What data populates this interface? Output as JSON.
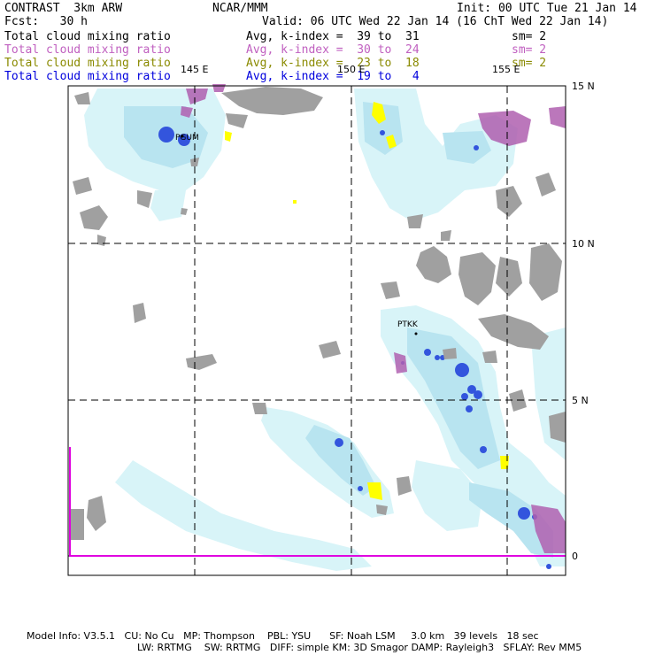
{
  "header": {
    "model": "CONTRAST  3km ARW",
    "org": "NCAR/MMM",
    "init": "Init: 00 UTC Tue 21 Jan 14",
    "fcst": "Fcst:   30 h",
    "valid": "Valid: 06 UTC Wed 22 Jan 14 (16 ChT Wed 22 Jan 14)"
  },
  "fields": [
    {
      "name": "Total cloud mixing ratio",
      "kindex": "Avg, k-index =  39 to  31",
      "sm": "sm= 2",
      "color": "#000000"
    },
    {
      "name": "Total cloud mixing ratio",
      "kindex": "Avg, k-index =  30 to  24",
      "sm": "sm= 2",
      "color": "#c060c0"
    },
    {
      "name": "Total cloud mixing ratio",
      "kindex": "Avg, k-index =  23 to  18",
      "sm": "sm= 2",
      "color": "#8a8a00"
    },
    {
      "name": "Total cloud mixing ratio",
      "kindex": "Avg, k-index =  19 to   4",
      "sm": "",
      "color": "#0000dd"
    }
  ],
  "map": {
    "lon_labels": [
      "145 E",
      "150 E",
      "155 E"
    ],
    "lat_labels": [
      "15 N",
      "10 N",
      "5 N",
      "0"
    ],
    "stations": [
      "PGUM",
      "PTKK"
    ]
  },
  "footer": {
    "line1": "Model Info: V3.5.1   CU: No Cu   MP: Thompson    PBL: YSU      SF: Noah LSM     3.0 km   39 levels   18 sec",
    "line2": "LW: RRTMG    SW: RRTMG   DIFF: simple KM: 3D Smagor DAMP: Rayleigh3   SFLAY: Rev MM5"
  },
  "colors": {
    "land": "#a0a0a0",
    "cloud_light": "#d8f4f8",
    "cloud_mid": "#b8e4f0",
    "cloud_blue": "#3355dd",
    "high_purple": "#b060b0",
    "yellow": "#ffff00",
    "boundary": "#e000e0"
  }
}
